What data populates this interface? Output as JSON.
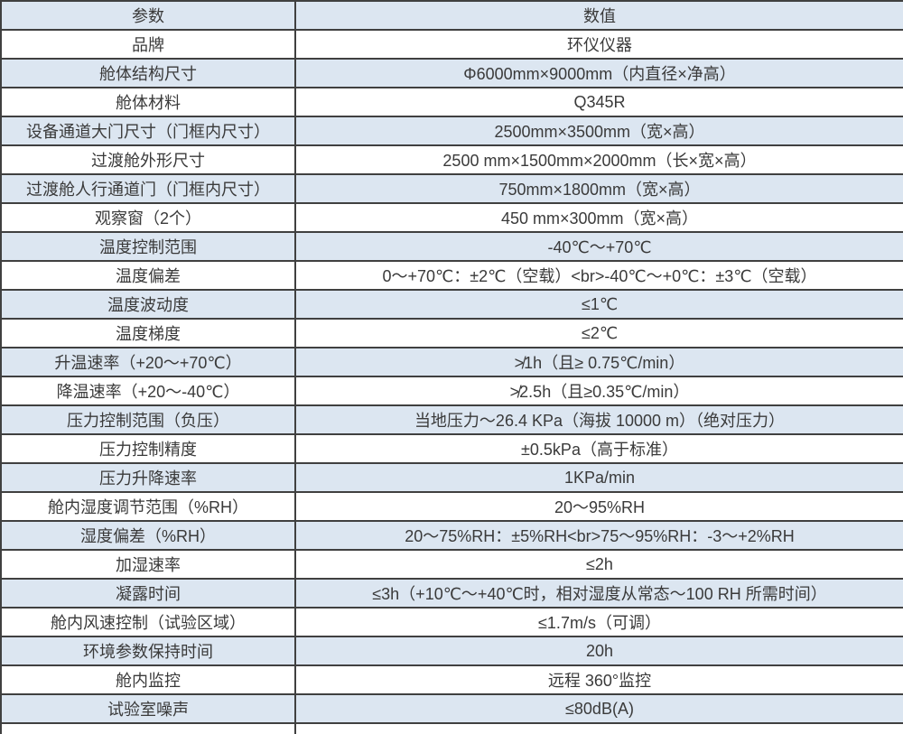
{
  "table": {
    "headers": {
      "param": "参数",
      "value": "数值"
    },
    "rows": [
      {
        "param": "品牌",
        "value": "环仪仪器"
      },
      {
        "param": "舱体结构尺寸",
        "value": "Φ6000mm×9000mm（内直径×净高）"
      },
      {
        "param": "舱体材料",
        "value": "Q345R"
      },
      {
        "param": "设备通道大门尺寸（门框内尺寸）",
        "value": "2500mm×3500mm（宽×高）"
      },
      {
        "param": "过渡舱外形尺寸",
        "value": "2500 mm×1500mm×2000mm（长×宽×高）"
      },
      {
        "param": "过渡舱人行通道门（门框内尺寸）",
        "value": "750mm×1800mm（宽×高）"
      },
      {
        "param": "观察窗（2个）",
        "value": "450 mm×300mm（宽×高）"
      },
      {
        "param": "温度控制范围",
        "value": "-40℃～+70℃"
      },
      {
        "param": "温度偏差",
        "value": "0～+70℃：±2℃（空载）<br>-40℃～+0℃：±3℃（空载）"
      },
      {
        "param": "温度波动度",
        "value": "≤1℃"
      },
      {
        "param": "温度梯度",
        "value": "≤2℃"
      },
      {
        "param": "升温速率（+20～+70℃）",
        "value": "≯1h（且≥ 0.75℃/min）"
      },
      {
        "param": "降温速率（+20～-40℃）",
        "value": "≯2.5h（且≥0.35℃/min）"
      },
      {
        "param": "压力控制范围（负压）",
        "value": "当地压力～26.4 KPa（海拔 10000 m）（绝对压力）"
      },
      {
        "param": "压力控制精度",
        "value": "±0.5kPa（高于标准）"
      },
      {
        "param": "压力升降速率",
        "value": "1KPa/min"
      },
      {
        "param": "舱内湿度调节范围（%RH）",
        "value": "20～95%RH"
      },
      {
        "param": "湿度偏差（%RH）",
        "value": "20～75%RH：±5%RH<br>75～95%RH：-3～+2%RH"
      },
      {
        "param": "加湿速率",
        "value": "≤2h"
      },
      {
        "param": "凝露时间",
        "value": "≤3h（+10℃～+40℃时，相对湿度从常态～100 RH 所需时间）"
      },
      {
        "param": "舱内风速控制（试验区域）",
        "value": "≤1.7m/s（可调）"
      },
      {
        "param": "环境参数保持时间",
        "value": "20h"
      },
      {
        "param": "舱内监控",
        "value": "远程 360°监控"
      },
      {
        "param": "试验室噪声",
        "value": "≤80dB(A)"
      }
    ]
  },
  "colors": {
    "stripe": "#dce6f1",
    "row_white": "#ffffff",
    "border": "#404040",
    "text": "#3a3a3a"
  }
}
